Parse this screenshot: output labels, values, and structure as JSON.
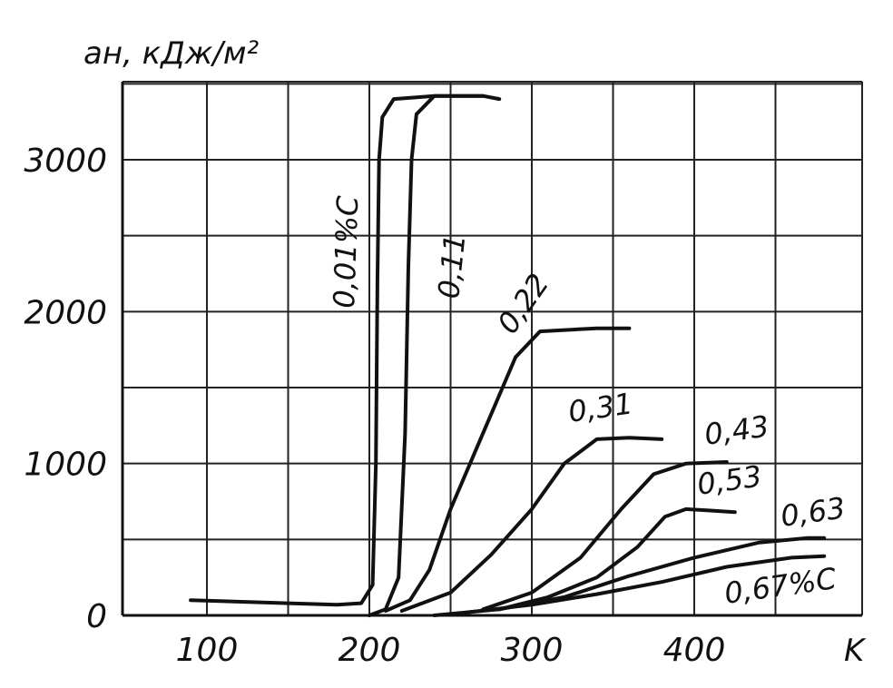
{
  "chart_data": {
    "type": "line",
    "title": "",
    "ylabel": "aн, кДж/м²",
    "xlabel": "K",
    "xlim": [
      80,
      480
    ],
    "ylim": [
      0,
      3400
    ],
    "x_ticks": [
      100,
      200,
      300,
      400
    ],
    "y_ticks": [
      0,
      1000,
      2000,
      3000
    ],
    "grid": true,
    "series": [
      {
        "name": "0,01%C",
        "points": [
          [
            90,
            100
          ],
          [
            150,
            80
          ],
          [
            180,
            70
          ],
          [
            195,
            80
          ],
          [
            202,
            200
          ],
          [
            204,
            1000
          ],
          [
            205,
            2200
          ],
          [
            206,
            3000
          ],
          [
            208,
            3280
          ],
          [
            215,
            3400
          ],
          [
            240,
            3420
          ],
          [
            270,
            3420
          ]
        ]
      },
      {
        "name": "0,11",
        "points": [
          [
            200,
            0
          ],
          [
            210,
            40
          ],
          [
            218,
            250
          ],
          [
            222,
            1200
          ],
          [
            224,
            2300
          ],
          [
            226,
            3000
          ],
          [
            229,
            3300
          ],
          [
            240,
            3420
          ],
          [
            270,
            3420
          ],
          [
            280,
            3400
          ]
        ]
      },
      {
        "name": "0,22",
        "points": [
          [
            210,
            30
          ],
          [
            225,
            100
          ],
          [
            237,
            300
          ],
          [
            250,
            700
          ],
          [
            270,
            1200
          ],
          [
            290,
            1700
          ],
          [
            305,
            1870
          ],
          [
            340,
            1890
          ],
          [
            360,
            1890
          ]
        ]
      },
      {
        "name": "0,31",
        "points": [
          [
            220,
            30
          ],
          [
            250,
            150
          ],
          [
            275,
            400
          ],
          [
            300,
            700
          ],
          [
            320,
            1000
          ],
          [
            340,
            1160
          ],
          [
            360,
            1170
          ],
          [
            380,
            1160
          ]
        ]
      },
      {
        "name": "0,43",
        "points": [
          [
            270,
            40
          ],
          [
            300,
            150
          ],
          [
            330,
            380
          ],
          [
            355,
            700
          ],
          [
            375,
            930
          ],
          [
            395,
            1000
          ],
          [
            420,
            1010
          ]
        ]
      },
      {
        "name": "0,53",
        "points": [
          [
            280,
            40
          ],
          [
            310,
            120
          ],
          [
            340,
            250
          ],
          [
            365,
            450
          ],
          [
            382,
            650
          ],
          [
            395,
            700
          ],
          [
            410,
            690
          ],
          [
            425,
            680
          ]
        ]
      },
      {
        "name": "0,63",
        "points": [
          [
            240,
            0
          ],
          [
            280,
            40
          ],
          [
            320,
            120
          ],
          [
            360,
            260
          ],
          [
            400,
            380
          ],
          [
            440,
            480
          ],
          [
            470,
            510
          ],
          [
            480,
            510
          ]
        ]
      },
      {
        "name": "0,67%C",
        "points": [
          [
            260,
            20
          ],
          [
            300,
            70
          ],
          [
            340,
            140
          ],
          [
            380,
            220
          ],
          [
            420,
            320
          ],
          [
            460,
            380
          ],
          [
            480,
            390
          ]
        ]
      }
    ]
  }
}
